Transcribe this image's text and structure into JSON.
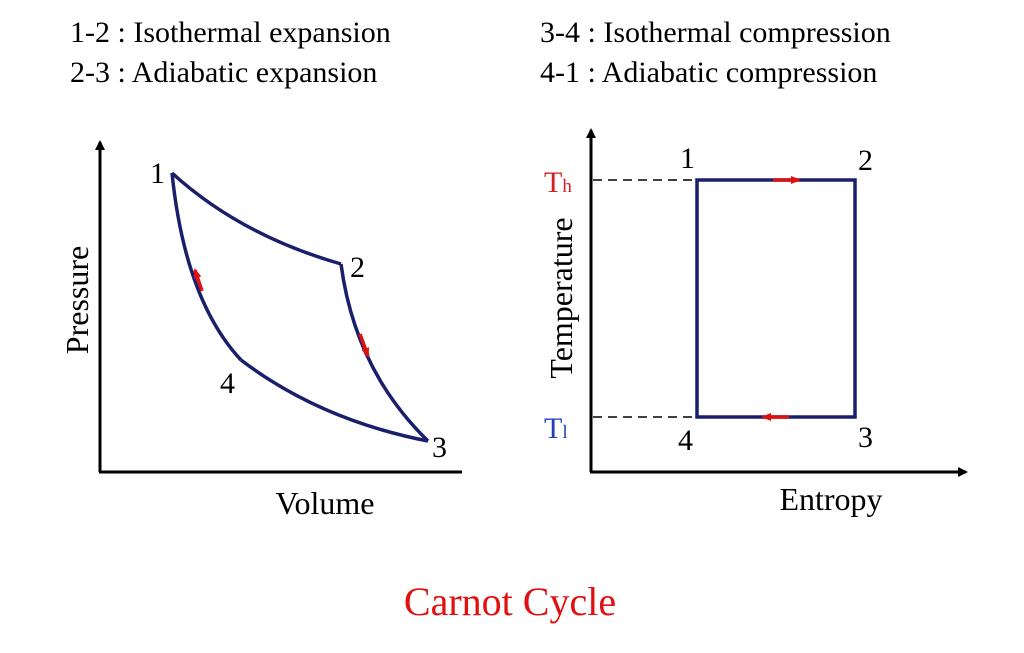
{
  "legend": {
    "p12": "1-2 : Isothermal expansion",
    "p23": "2-3 : Adiabatic expansion",
    "p34": "3-4 : Isothermal compression",
    "p41": "4-1 : Adiabatic compression"
  },
  "pv_diagram": {
    "ylabel": "Pressure",
    "xlabel": "Volume",
    "points": [
      "1",
      "2",
      "3",
      "4"
    ]
  },
  "ts_diagram": {
    "ylabel": "Temperature",
    "xlabel": "Entropy",
    "points": [
      "1",
      "2",
      "3",
      "4"
    ],
    "th_main": "T",
    "th_sub": "h",
    "tl_main": "T",
    "tl_sub": "l"
  },
  "title": "Carnot Cycle",
  "colors": {
    "cycle": "#1a1f6b",
    "arrow": "#e01010",
    "title": "#e01010",
    "th": "#d42020",
    "tl": "#2040c0"
  }
}
